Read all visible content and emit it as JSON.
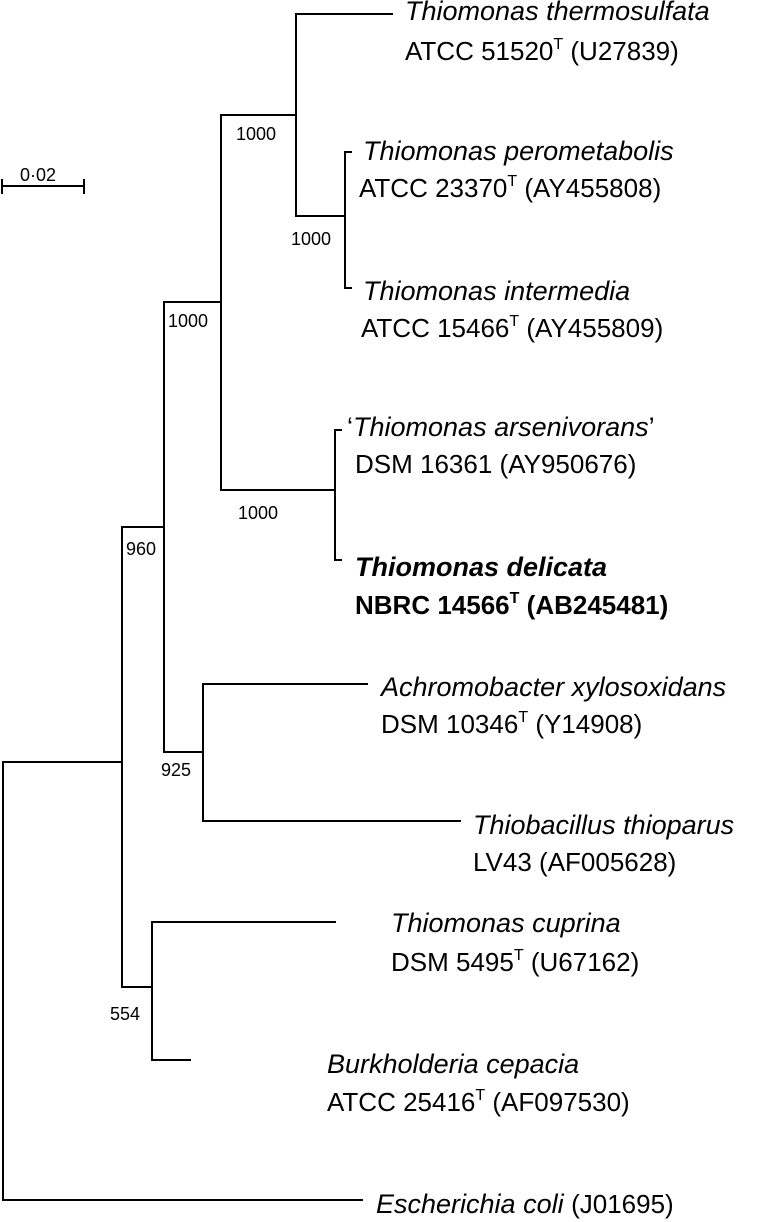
{
  "scale_bar": {
    "label": "0·02"
  },
  "taxa": [
    {
      "id": "thermosulfata",
      "species": "Thiomonas thermosulfata",
      "strain": "ATCC 51520",
      "type_strain": true,
      "accession": "(U27839)"
    },
    {
      "id": "perometabolis",
      "species": "Thiomonas perometabolis",
      "strain": "ATCC 23370",
      "type_strain": true,
      "accession": "(AY455808)"
    },
    {
      "id": "intermedia",
      "species": "Thiomonas intermedia",
      "strain": "ATCC 15466",
      "type_strain": true,
      "accession": "(AY455809)"
    },
    {
      "id": "arsenivorans",
      "species": "Thiomonas arsenivorans",
      "quote_open": "‘",
      "quote_close": "’",
      "strain": "DSM 16361",
      "type_strain": false,
      "accession": "(AY950676)"
    },
    {
      "id": "delicata",
      "species": "Thiomonas delicata",
      "strain": "NBRC 14566",
      "type_strain": true,
      "accession": "(AB245481)",
      "highlight": true
    },
    {
      "id": "achromobacter",
      "species": "Achromobacter xylosoxidans",
      "strain": "DSM 10346",
      "type_strain": true,
      "accession": "(Y14908)"
    },
    {
      "id": "thiobacillus",
      "species": "Thiobacillus thioparus",
      "strain": "LV43",
      "type_strain": false,
      "accession": "(AF005628)"
    },
    {
      "id": "cuprina",
      "species": "Thiomonas cuprina",
      "strain": "DSM 5495",
      "type_strain": true,
      "accession": "(U67162)"
    },
    {
      "id": "burkholderia",
      "species": "Burkholderia cepacia",
      "strain": "ATCC 25416",
      "type_strain": true,
      "accession": "(AF097530)"
    },
    {
      "id": "ecoli",
      "species": "Escherichia coli",
      "accession": "(J01695)"
    }
  ],
  "type_marker": "T",
  "bootstrap": {
    "thermo_clade": "1000",
    "perom_intermedia": "1000",
    "thiomonas_core": "1000",
    "arsen_delicata": "1000",
    "ingroup": "960",
    "achro_thiobac": "925",
    "cuprina_burk": "554"
  }
}
